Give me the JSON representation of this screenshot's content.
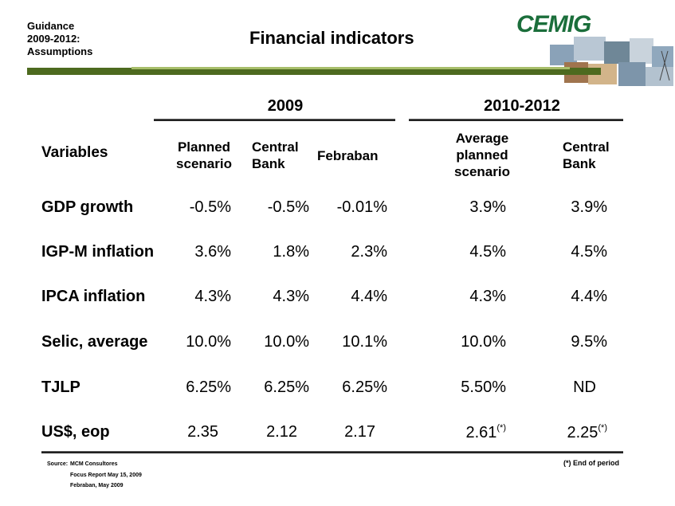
{
  "header": {
    "guidance": "Guidance\n2009-2012:\nAssumptions",
    "title": "Financial indicators",
    "logo": "CEMIG"
  },
  "groups": {
    "g2009": "2009",
    "g2010": "2010-2012"
  },
  "columns": {
    "variables": "Variables",
    "planned": "Planned\nscenario",
    "central_bank_2009": "Central\nBank",
    "febraban": "Febraban",
    "average_planned": "Average\nplanned\nscenario",
    "central_bank_2010": "Central\nBank"
  },
  "rows": [
    {
      "label": "GDP growth",
      "v": [
        "-0.5%",
        "-0.5%",
        "-0.01%",
        "3.9%",
        "3.9%"
      ],
      "sup": [
        "",
        ""
      ]
    },
    {
      "label": "IGP-M inflation",
      "v": [
        "3.6%",
        "1.8%",
        "2.3%",
        "4.5%",
        "4.5%"
      ],
      "sup": [
        "",
        ""
      ]
    },
    {
      "label": "IPCA inflation",
      "v": [
        "4.3%",
        "4.3%",
        "4.4%",
        "4.3%",
        "4.4%"
      ],
      "sup": [
        "",
        ""
      ]
    },
    {
      "label": "Selic, average",
      "v": [
        "10.0%",
        "10.0%",
        "10.1%",
        "10.0%",
        "9.5%"
      ],
      "sup": [
        "",
        ""
      ]
    },
    {
      "label": "TJLP",
      "v": [
        "6.25%",
        "6.25%",
        "6.25%",
        "5.50%",
        "ND"
      ],
      "sup": [
        "",
        ""
      ]
    },
    {
      "label": "US$, eop",
      "v": [
        "2.35",
        "2.12",
        "2.17",
        "2.61",
        "2.25"
      ],
      "sup": [
        "(*)",
        "(*)"
      ]
    }
  ],
  "footer": {
    "source_label": "Source:",
    "sources": [
      "MCM Consultores",
      "Focus Report May 15, 2009",
      "Febraban, May 2009"
    ],
    "note": "(*) End of period"
  },
  "colors": {
    "band_dark": "#4d6a1f",
    "band_light": "#a7be6a",
    "logo": "#1b6e3b"
  },
  "icons": [
    "photo-collage-icon"
  ]
}
